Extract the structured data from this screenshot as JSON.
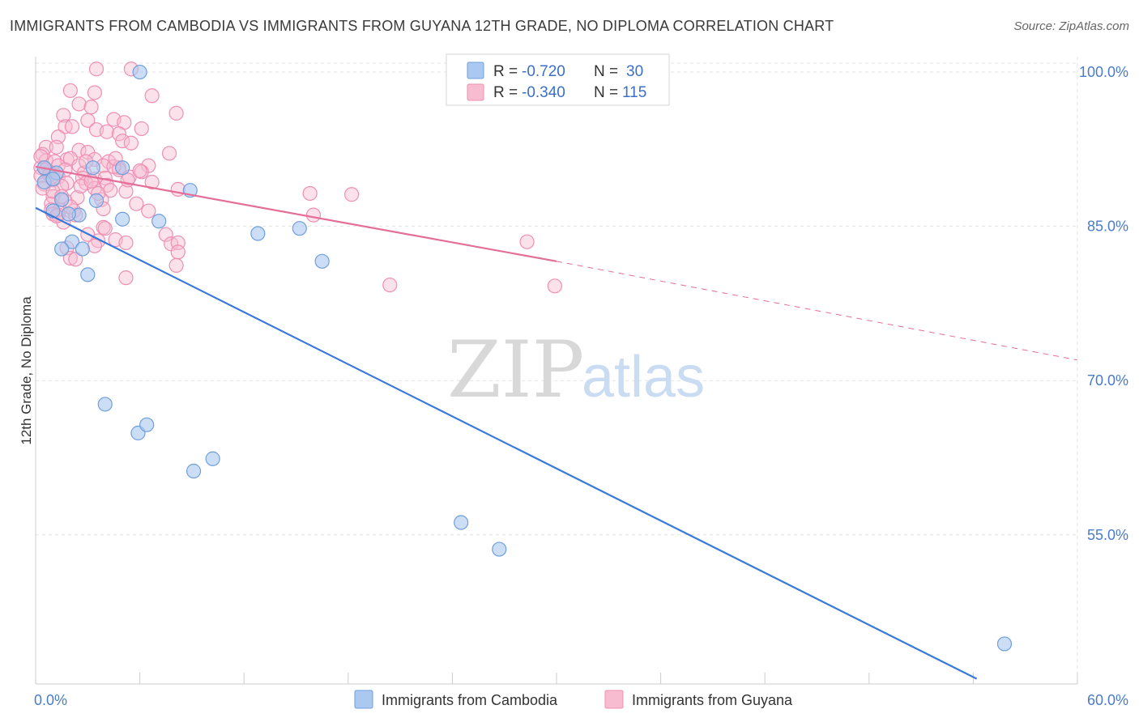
{
  "title": "IMMIGRANTS FROM CAMBODIA VS IMMIGRANTS FROM GUYANA 12TH GRADE, NO DIPLOMA CORRELATION CHART",
  "source": "Source: ZipAtlas.com",
  "watermark": {
    "zip": "ZIP",
    "atlas": "atlas"
  },
  "colors": {
    "cambodia_fill": "#aac8f0",
    "cambodia_stroke": "#6f9fdc",
    "cambodia_line": "#3a7ad6",
    "guyana_fill": "#f7bcd0",
    "guyana_stroke": "#ef8fb2",
    "guyana_line": "#e56e98",
    "grid": "#e3e3e3",
    "tick_label": "#4a7bc8"
  },
  "legend": {
    "r_label": "R =",
    "n_label": "N =",
    "rows": [
      {
        "series": "Immigrants from Cambodia",
        "r": "-0.720",
        "n": "30"
      },
      {
        "series": "Immigrants from Guyana",
        "r": "-0.340",
        "n": "115"
      }
    ]
  },
  "chart_data": {
    "type": "scatter",
    "title": "IMMIGRANTS FROM CAMBODIA VS IMMIGRANTS FROM GUYANA 12TH GRADE, NO DIPLOMA CORRELATION CHART",
    "xlabel": "",
    "ylabel": "12th Grade, No Diploma",
    "xlim": [
      0,
      60
    ],
    "ylim": [
      40.5,
      101.5
    ],
    "x_tick_labels": [
      "0.0%",
      "60.0%"
    ],
    "x_tick_values": [
      0,
      60
    ],
    "y_tick_labels": [
      "100.0%",
      "85.0%",
      "70.0%",
      "55.0%"
    ],
    "y_tick_values": [
      100,
      85,
      70,
      55
    ],
    "grid": true,
    "legend_position": "top-center",
    "series": [
      {
        "name": "Immigrants from Cambodia",
        "r": -0.72,
        "n": 30,
        "points": [
          [
            6.0,
            100.0
          ],
          [
            0.5,
            90.7
          ],
          [
            0.5,
            89.3
          ],
          [
            1.2,
            90.2
          ],
          [
            1.0,
            89.6
          ],
          [
            5.0,
            90.7
          ],
          [
            3.3,
            90.7
          ],
          [
            8.9,
            88.5
          ],
          [
            3.5,
            87.5
          ],
          [
            1.5,
            87.6
          ],
          [
            1.0,
            86.5
          ],
          [
            2.5,
            86.1
          ],
          [
            1.9,
            86.2
          ],
          [
            5.0,
            85.7
          ],
          [
            7.1,
            85.5
          ],
          [
            2.1,
            83.5
          ],
          [
            1.5,
            82.8
          ],
          [
            2.7,
            82.8
          ],
          [
            3.0,
            80.3
          ],
          [
            12.8,
            84.3
          ],
          [
            15.2,
            84.8
          ],
          [
            16.5,
            81.6
          ],
          [
            4.0,
            67.7
          ],
          [
            5.9,
            64.9
          ],
          [
            6.4,
            65.7
          ],
          [
            9.1,
            61.2
          ],
          [
            10.2,
            62.4
          ],
          [
            24.5,
            56.2
          ],
          [
            26.7,
            53.6
          ],
          [
            55.8,
            44.4
          ]
        ]
      },
      {
        "name": "Immigrants from Guyana",
        "r": -0.34,
        "n": 115,
        "points": [
          [
            3.5,
            100.3
          ],
          [
            5.5,
            100.3
          ],
          [
            2.0,
            98.2
          ],
          [
            3.4,
            98.0
          ],
          [
            6.7,
            97.7
          ],
          [
            2.5,
            96.9
          ],
          [
            3.2,
            96.6
          ],
          [
            1.6,
            95.8
          ],
          [
            8.1,
            96.0
          ],
          [
            3.0,
            95.3
          ],
          [
            4.5,
            95.4
          ],
          [
            5.1,
            95.1
          ],
          [
            1.7,
            94.7
          ],
          [
            2.1,
            94.7
          ],
          [
            3.5,
            94.4
          ],
          [
            4.1,
            94.2
          ],
          [
            4.8,
            94.0
          ],
          [
            6.1,
            94.5
          ],
          [
            1.3,
            93.7
          ],
          [
            5.0,
            93.3
          ],
          [
            5.5,
            93.1
          ],
          [
            0.6,
            92.7
          ],
          [
            1.2,
            92.7
          ],
          [
            2.5,
            92.4
          ],
          [
            0.4,
            92.0
          ],
          [
            1.8,
            91.5
          ],
          [
            3.0,
            92.2
          ],
          [
            7.7,
            92.1
          ],
          [
            0.6,
            91.4
          ],
          [
            1.1,
            91.3
          ],
          [
            2.0,
            91.6
          ],
          [
            3.4,
            91.5
          ],
          [
            4.2,
            91.3
          ],
          [
            0.3,
            90.7
          ],
          [
            1.3,
            90.9
          ],
          [
            2.5,
            90.9
          ],
          [
            3.9,
            90.9
          ],
          [
            4.8,
            90.7
          ],
          [
            6.5,
            90.9
          ],
          [
            0.8,
            90.3
          ],
          [
            1.7,
            90.5
          ],
          [
            2.8,
            90.2
          ],
          [
            4.8,
            90.5
          ],
          [
            0.3,
            89.9
          ],
          [
            0.9,
            89.8
          ],
          [
            1.3,
            89.8
          ],
          [
            2.7,
            89.7
          ],
          [
            3.4,
            89.6
          ],
          [
            4.0,
            89.7
          ],
          [
            5.4,
            89.8
          ],
          [
            6.1,
            90.3
          ],
          [
            0.5,
            89.1
          ],
          [
            1.8,
            89.2
          ],
          [
            2.9,
            89.2
          ],
          [
            4.1,
            89.0
          ],
          [
            6.7,
            89.3
          ],
          [
            8.2,
            88.6
          ],
          [
            3.4,
            88.7
          ],
          [
            4.3,
            88.5
          ],
          [
            5.2,
            88.4
          ],
          [
            1.0,
            87.9
          ],
          [
            2.4,
            87.8
          ],
          [
            3.8,
            87.6
          ],
          [
            0.9,
            87.2
          ],
          [
            1.7,
            87.5
          ],
          [
            5.8,
            87.2
          ],
          [
            0.9,
            86.6
          ],
          [
            1.4,
            86.6
          ],
          [
            2.2,
            86.5
          ],
          [
            3.9,
            86.7
          ],
          [
            6.5,
            86.5
          ],
          [
            1.0,
            86.2
          ],
          [
            1.3,
            86.1
          ],
          [
            2.3,
            86.1
          ],
          [
            15.8,
            88.2
          ],
          [
            18.2,
            88.1
          ],
          [
            16.0,
            86.1
          ],
          [
            1.6,
            85.4
          ],
          [
            3.9,
            84.9
          ],
          [
            4.0,
            84.8
          ],
          [
            3.0,
            84.2
          ],
          [
            7.5,
            84.2
          ],
          [
            3.6,
            83.6
          ],
          [
            4.6,
            83.7
          ],
          [
            7.8,
            83.3
          ],
          [
            8.2,
            83.4
          ],
          [
            5.2,
            83.4
          ],
          [
            3.4,
            83.1
          ],
          [
            1.8,
            82.9
          ],
          [
            8.2,
            82.5
          ],
          [
            2.0,
            81.9
          ],
          [
            2.3,
            81.8
          ],
          [
            8.1,
            81.2
          ],
          [
            5.2,
            80.0
          ],
          [
            20.4,
            79.3
          ],
          [
            28.3,
            83.5
          ],
          [
            29.9,
            79.2
          ],
          [
            0.3,
            91.8
          ],
          [
            0.6,
            90.5
          ],
          [
            0.8,
            90.0
          ],
          [
            1.0,
            89.5
          ],
          [
            1.5,
            88.9
          ],
          [
            2.6,
            88.9
          ],
          [
            3.6,
            88.2
          ],
          [
            4.5,
            90.8
          ],
          [
            2.9,
            91.3
          ],
          [
            0.4,
            88.7
          ],
          [
            1.0,
            88.4
          ],
          [
            2.0,
            86.9
          ],
          [
            1.2,
            86.0
          ],
          [
            6.0,
            90.4
          ],
          [
            3.2,
            89.4
          ],
          [
            4.6,
            91.6
          ],
          [
            1.5,
            87.9
          ],
          [
            5.3,
            89.5
          ]
        ]
      }
    ],
    "trend_lines": [
      {
        "series": "Immigrants from Cambodia",
        "x": [
          0,
          54.2
        ],
        "y": [
          86.8,
          41.0
        ],
        "dashed_extension": false
      },
      {
        "series": "Immigrants from Guyana",
        "x": [
          0,
          30.0
        ],
        "y": [
          90.8,
          81.6
        ],
        "dashed_to": [
          60.0,
          72.0
        ]
      }
    ]
  }
}
